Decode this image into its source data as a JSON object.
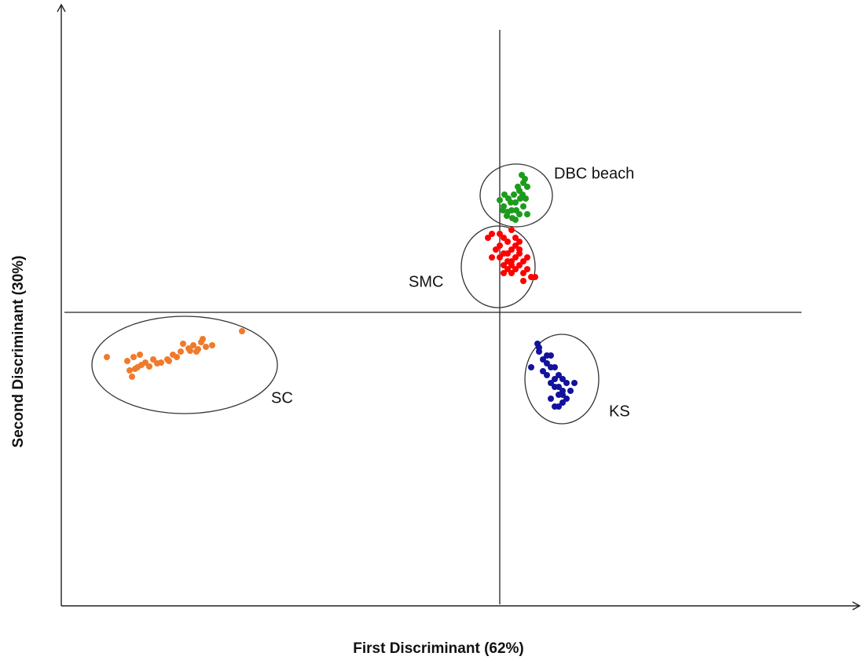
{
  "chart_data": {
    "type": "scatter",
    "x_label": "First Discriminant (62%)",
    "y_label": "Second Discriminant (30%)",
    "xlim": [
      -11.16,
      9.08
    ],
    "ylim": [
      -7.48,
      7.76
    ],
    "series": [
      {
        "name": "SC",
        "color": "#f07a2a",
        "x": [
          -10,
          -9.48,
          -9.32,
          -9.16,
          -9.02,
          -8.82,
          -8.62,
          -8.46,
          -8.32,
          -8.12,
          -8.06,
          -7.92,
          -7.8,
          -7.72,
          -7.6,
          -7.48,
          -7.32,
          -6.56,
          -9.36,
          -9.28,
          -9.12,
          -8.92,
          -8.72,
          -8.42,
          -8.22,
          -7.88,
          -7.68,
          -7.56,
          -9.42,
          -9.22
        ],
        "y": [
          -1.14,
          -1.24,
          -1.14,
          -1.08,
          -1.28,
          -1.2,
          -1.28,
          -1.2,
          -1.08,
          -1.0,
          -0.8,
          -0.92,
          -0.84,
          -1.0,
          -0.76,
          -0.88,
          -0.84,
          -0.48,
          -1.64,
          -1.44,
          -1.34,
          -1.38,
          -1.3,
          -1.24,
          -1.14,
          -0.98,
          -0.94,
          -0.68,
          -1.48,
          -1.4
        ]
      },
      {
        "name": "DBC beach",
        "color": "#1c9c1c",
        "x": [
          0.0,
          0.1,
          0.2,
          0.3,
          0.4,
          0.5,
          0.6,
          0.7,
          0.36,
          0.46,
          0.56,
          0.64,
          0.52,
          0.42,
          0.32,
          0.22,
          0.12,
          0.6,
          0.7,
          0.5,
          0.4,
          0.28,
          0.18,
          0.08,
          0.66,
          0.58
        ],
        "y": [
          2.86,
          2.7,
          2.56,
          2.6,
          2.8,
          3.1,
          3.3,
          3.2,
          3.0,
          3.2,
          3.5,
          3.4,
          2.9,
          2.6,
          2.4,
          2.9,
          3.0,
          2.7,
          2.5,
          2.5,
          2.36,
          2.8,
          2.46,
          2.6,
          2.9,
          3.0
        ]
      },
      {
        "name": "SMC",
        "color": "#ff0000",
        "x": [
          -0.3,
          -0.2,
          -0.1,
          0.0,
          0.1,
          0.2,
          0.3,
          0.4,
          0.5,
          0.6,
          0.7,
          0.8,
          0.9,
          0.2,
          0.3,
          0.1,
          0.0,
          0.4,
          0.5,
          0.6,
          0.2,
          0.3,
          0.1,
          0.5,
          0.4,
          0.7,
          0.6,
          0.3,
          0.2,
          0.0,
          -0.2,
          0.1,
          0.4,
          0.5,
          0.3
        ],
        "y": [
          1.9,
          2.0,
          1.6,
          1.4,
          1.5,
          1.3,
          1.6,
          1.4,
          1.2,
          1.0,
          1.1,
          0.9,
          0.9,
          1.8,
          2.1,
          1.2,
          1.7,
          1.7,
          1.5,
          1.3,
          1.1,
          1.3,
          1.9,
          1.6,
          1.1,
          1.4,
          0.8,
          1.0,
          1.5,
          2.0,
          1.4,
          1.0,
          1.9,
          1.8,
          1.2
        ]
      },
      {
        "name": "KS",
        "color": "#12129c",
        "x": [
          0.96,
          1.0,
          1.1,
          1.2,
          1.3,
          1.4,
          1.5,
          1.6,
          1.7,
          1.8,
          1.9,
          1.2,
          1.3,
          1.4,
          1.5,
          1.6,
          1.1,
          1.2,
          1.3,
          1.4,
          1.5,
          1.6,
          1.7,
          1.4,
          1.5,
          1.6,
          1.3,
          0.8,
          1.0
        ],
        "y": [
          -0.8,
          -1.0,
          -1.2,
          -1.3,
          -1.1,
          -1.4,
          -1.6,
          -1.7,
          -1.8,
          -2.0,
          -1.8,
          -1.6,
          -1.8,
          -1.9,
          -2.1,
          -2.3,
          -1.5,
          -1.1,
          -1.4,
          -1.7,
          -1.9,
          -2.0,
          -2.2,
          -2.4,
          -2.4,
          -2.1,
          -2.2,
          -1.4,
          -0.9
        ]
      }
    ]
  }
}
